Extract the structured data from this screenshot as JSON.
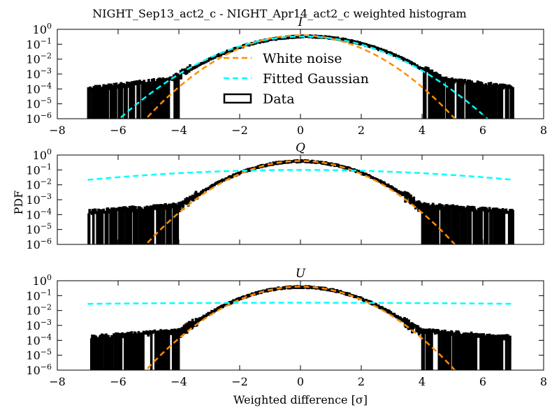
{
  "figure": {
    "suptitle": "NIGHT_Sep13_act2_c - NIGHT_Apr14_act2_c weighted histogram",
    "ylabel": "PDF",
    "xlabel": "Weighted difference [σ]",
    "legend_labels": [
      "White noise",
      "Fitted Gaussian",
      "Data"
    ]
  },
  "chart_data": [
    {
      "type": "line",
      "title": "I",
      "xlim": [
        -8,
        8
      ],
      "ylim_log10": [
        -6,
        0
      ],
      "yscale": "log",
      "x_ticks": [
        -8,
        -6,
        -4,
        -2,
        0,
        2,
        4,
        6,
        8
      ],
      "x_tick_labels": [
        "−8",
        "−6",
        "−4",
        "−2",
        "0",
        "2",
        "4",
        "6",
        "8"
      ],
      "y_tick_exponents": [
        "0",
        "-1",
        "-2",
        "-3",
        "-4",
        "-5",
        "-6"
      ],
      "legend": "center",
      "series": [
        {
          "name": "White noise",
          "kind": "gaussian",
          "mu": 0.0,
          "sigma": 1.0,
          "color": "#ff8c00",
          "style": "dashed"
        },
        {
          "name": "Fitted Gaussian",
          "kind": "gaussian",
          "mu": 0.1,
          "sigma": 1.2,
          "color": "#00ffff",
          "style": "dashed"
        },
        {
          "name": "Data",
          "kind": "histogram",
          "center": 0.2,
          "core_sigma": 1.2,
          "tail_amp": 0.0004,
          "tail_decay": 0.55,
          "x_range": [
            -7.0,
            7.0
          ],
          "color": "#000000"
        }
      ]
    },
    {
      "type": "line",
      "title": "Q",
      "xlim": [
        -8,
        8
      ],
      "ylim_log10": [
        -6,
        0
      ],
      "yscale": "log",
      "x_ticks": [
        -8,
        -6,
        -4,
        -2,
        0,
        2,
        4,
        6,
        8
      ],
      "x_tick_labels": [
        "",
        "",
        "",
        "",
        "",
        "",
        "",
        "",
        ""
      ],
      "y_tick_exponents": [
        "0",
        "-1",
        "-2",
        "-3",
        "-4",
        "-5",
        "-6"
      ],
      "series": [
        {
          "name": "White noise",
          "kind": "gaussian",
          "mu": 0.0,
          "sigma": 1.0,
          "color": "#ff8c00",
          "style": "dashed"
        },
        {
          "name": "Fitted Gaussian",
          "kind": "gaussian",
          "mu": 0.0,
          "sigma": 4.0,
          "color": "#00ffff",
          "style": "dashed"
        },
        {
          "name": "Data",
          "kind": "histogram",
          "center": 0.0,
          "core_sigma": 1.05,
          "tail_amp": 0.0003,
          "tail_decay": 0.35,
          "x_range": [
            -7.0,
            7.0
          ],
          "color": "#000000"
        }
      ]
    },
    {
      "type": "line",
      "title": "U",
      "xlim": [
        -8,
        8
      ],
      "ylim_log10": [
        -6,
        0
      ],
      "yscale": "log",
      "x_ticks": [
        -8,
        -6,
        -4,
        -2,
        0,
        2,
        4,
        6,
        8
      ],
      "x_tick_labels": [
        "−8",
        "−6",
        "−4",
        "−2",
        "0",
        "2",
        "4",
        "6",
        "8"
      ],
      "y_tick_exponents": [
        "0",
        "-1",
        "-2",
        "-3",
        "-4",
        "-5",
        "-6"
      ],
      "series": [
        {
          "name": "White noise",
          "kind": "gaussian",
          "mu": 0.0,
          "sigma": 1.0,
          "color": "#ff8c00",
          "style": "dashed"
        },
        {
          "name": "Fitted Gaussian",
          "kind": "gaussian",
          "mu": 0.0,
          "sigma": 12.0,
          "color": "#00ffff",
          "style": "dashed"
        },
        {
          "name": "Data",
          "kind": "histogram",
          "center": 0.0,
          "core_sigma": 1.05,
          "tail_amp": 0.0003,
          "tail_decay": 0.35,
          "x_range": [
            -6.9,
            6.9
          ],
          "color": "#000000"
        }
      ]
    }
  ]
}
